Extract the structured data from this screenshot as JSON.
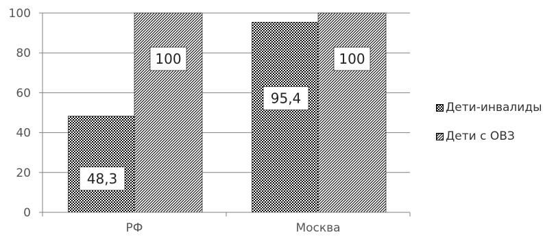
{
  "chart_data": {
    "type": "bar",
    "categories": [
      "РФ",
      "Москва"
    ],
    "series": [
      {
        "name": "Дети-инвалиды",
        "values": [
          48.3,
          95.4
        ],
        "labels": [
          "48,3",
          "95,4"
        ],
        "pattern": "crosshatch"
      },
      {
        "name": "Дети с ОВЗ",
        "values": [
          100,
          100
        ],
        "labels": [
          "100",
          "100"
        ],
        "pattern": "diagonal"
      }
    ],
    "ylim": [
      0,
      100
    ],
    "yticks": [
      0,
      20,
      40,
      60,
      80,
      100
    ],
    "grid": true,
    "legend_position": "right",
    "colors": {
      "axis": "#808080",
      "grid": "#808080",
      "bar_stroke": "#000000"
    }
  }
}
